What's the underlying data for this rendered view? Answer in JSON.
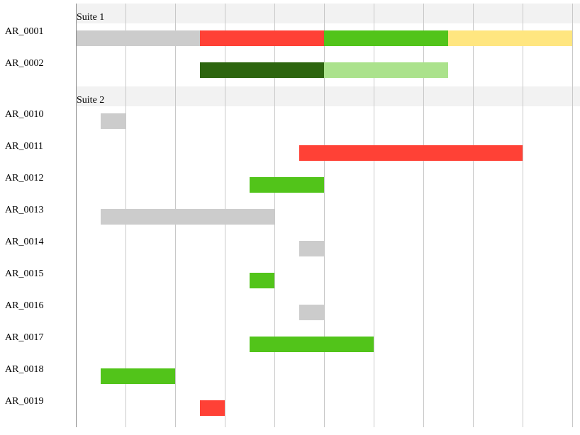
{
  "chart_data": {
    "type": "gantt",
    "title": "",
    "xlabel": "",
    "ylabel": "",
    "x_range": [
      0,
      20
    ],
    "x_grid_step": 2,
    "grid": true,
    "colors": {
      "gray": "#cccccc",
      "red": "#ff4136",
      "green": "#52c41a",
      "yellow": "#ffe680",
      "dark_green": "#2d650f",
      "light_green": "#abe28c",
      "suite_header_bg": "#f2f2f2",
      "grid": "#c8c8c8",
      "axis": "#888888"
    },
    "groups": [
      {
        "name": "Suite 1",
        "rows": [
          {
            "label": "AR_0001",
            "segments": [
              {
                "start": 0,
                "end": 5,
                "color": "gray"
              },
              {
                "start": 5,
                "end": 10,
                "color": "red"
              },
              {
                "start": 10,
                "end": 15,
                "color": "green"
              },
              {
                "start": 15,
                "end": 20,
                "color": "yellow"
              }
            ]
          },
          {
            "label": "AR_0002",
            "segments": [
              {
                "start": 5,
                "end": 10,
                "color": "dark_green"
              },
              {
                "start": 10,
                "end": 15,
                "color": "light_green"
              }
            ]
          }
        ]
      },
      {
        "name": "Suite 2",
        "rows": [
          {
            "label": "AR_0010",
            "segments": [
              {
                "start": 1,
                "end": 2,
                "color": "gray"
              }
            ]
          },
          {
            "label": "AR_0011",
            "segments": [
              {
                "start": 9,
                "end": 18,
                "color": "red"
              }
            ]
          },
          {
            "label": "AR_0012",
            "segments": [
              {
                "start": 7,
                "end": 10,
                "color": "green"
              }
            ]
          },
          {
            "label": "AR_0013",
            "segments": [
              {
                "start": 1,
                "end": 8,
                "color": "gray"
              }
            ]
          },
          {
            "label": "AR_0014",
            "segments": [
              {
                "start": 9,
                "end": 10,
                "color": "gray"
              }
            ]
          },
          {
            "label": "AR_0015",
            "segments": [
              {
                "start": 7,
                "end": 8,
                "color": "green"
              }
            ]
          },
          {
            "label": "AR_0016",
            "segments": [
              {
                "start": 9,
                "end": 10,
                "color": "gray"
              }
            ]
          },
          {
            "label": "AR_0017",
            "segments": [
              {
                "start": 7,
                "end": 12,
                "color": "green"
              }
            ]
          },
          {
            "label": "AR_0018",
            "segments": [
              {
                "start": 1,
                "end": 4,
                "color": "green"
              }
            ]
          },
          {
            "label": "AR_0019",
            "segments": [
              {
                "start": 5,
                "end": 6,
                "color": "red"
              }
            ]
          }
        ]
      }
    ]
  }
}
